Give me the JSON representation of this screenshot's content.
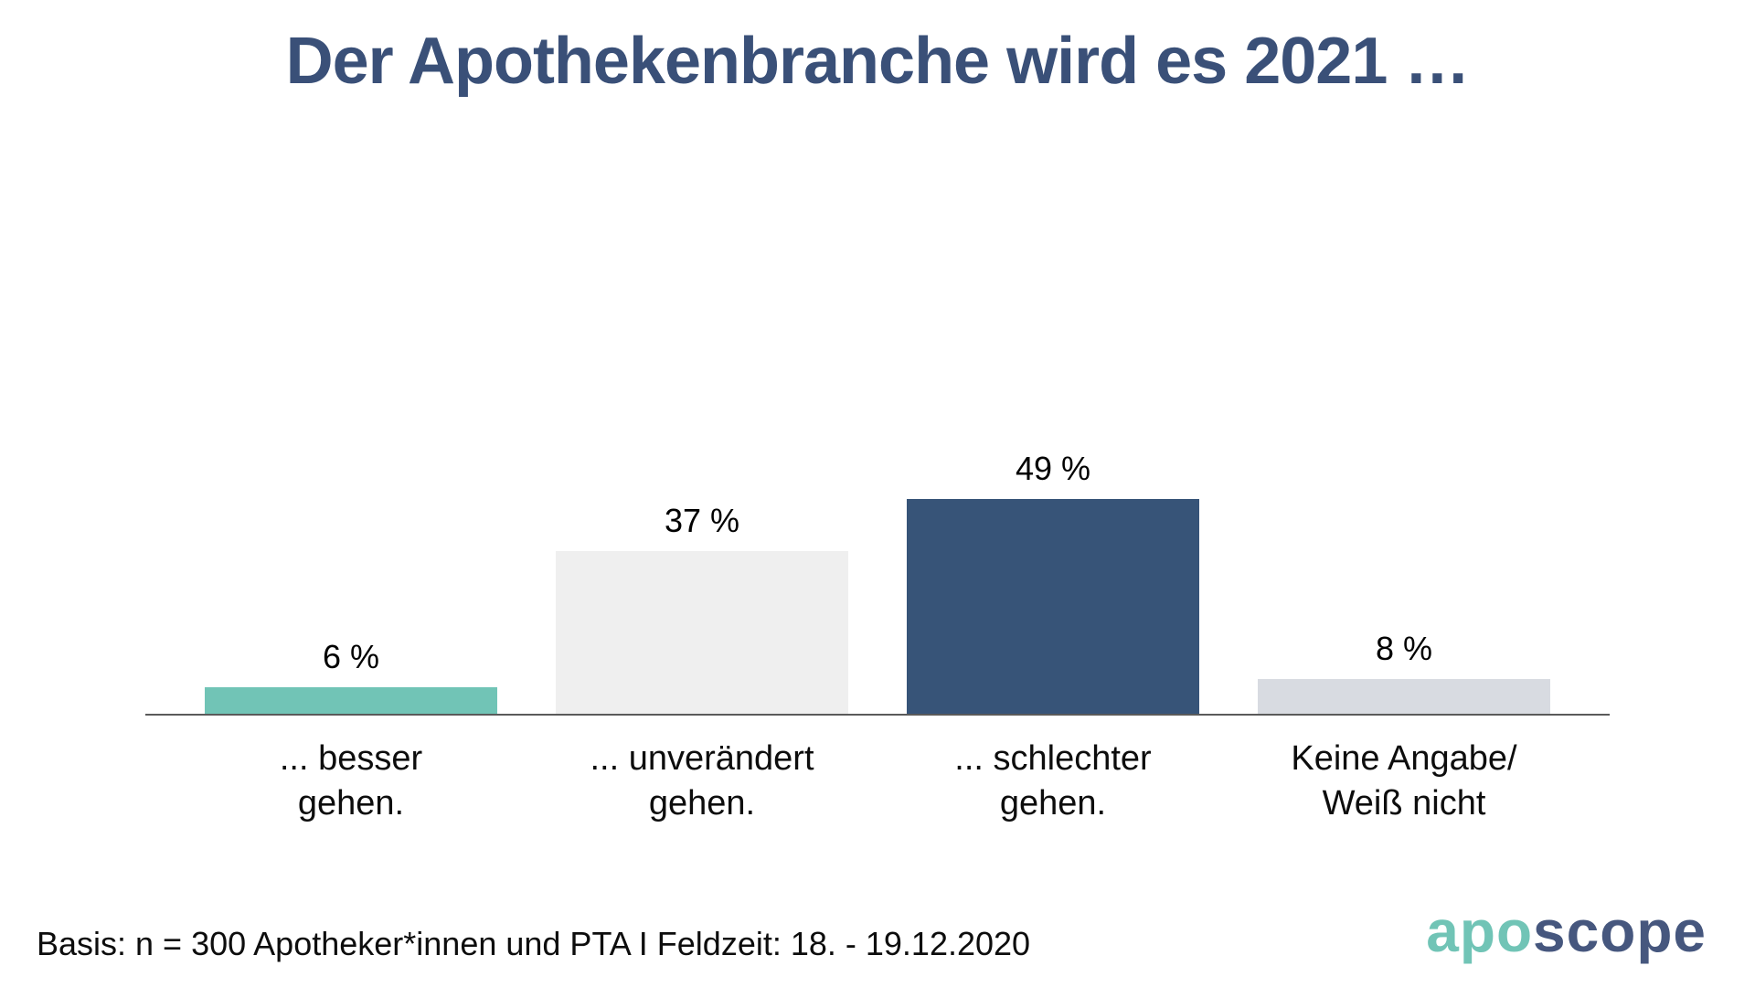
{
  "chart_data": {
    "type": "bar",
    "title": "Der Apothekenbranche wird es 2021 …",
    "categories": [
      "... besser gehen.",
      "... unverändert gehen.",
      "... schlechter gehen.",
      "Keine Angabe/ Weiß nicht"
    ],
    "category_lines": [
      [
        "... besser",
        "gehen."
      ],
      [
        "... unverändert",
        "gehen."
      ],
      [
        "... schlechter",
        "gehen."
      ],
      [
        "Keine Angabe/",
        "Weiß nicht"
      ]
    ],
    "values": [
      6,
      37,
      49,
      8
    ],
    "value_labels": [
      "6 %",
      "37 %",
      "49 %",
      "8 %"
    ],
    "bar_colors": [
      "#71C4B6",
      "#EFEFEF",
      "#375478",
      "#D8DBE1"
    ],
    "xlabel": "",
    "ylabel": "",
    "ylim": [
      0,
      55
    ],
    "grid": false,
    "legend": "none",
    "axis_line_color": "#5A5A5A"
  },
  "footer": {
    "basis": "Basis: n = 300 Apotheker*innen und PTA I Feldzeit: 18. - 19.12.2020",
    "logo": {
      "part1": "apo",
      "part2": "scope",
      "part1_color": "#71C4B6",
      "part2_color": "#46577E"
    }
  },
  "colors": {
    "title": "#3A5078",
    "text": "#000000",
    "background": "#FFFFFF"
  }
}
